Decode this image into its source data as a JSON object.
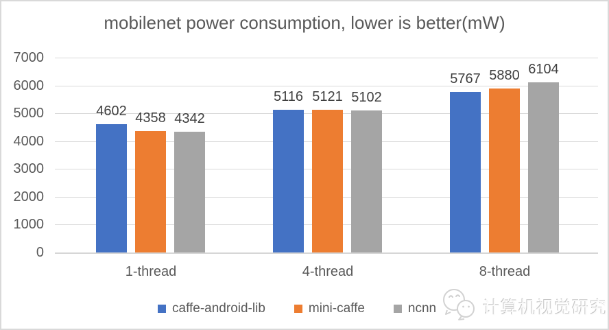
{
  "chart_data": {
    "type": "bar",
    "title": "mobilenet power consumption, lower is better(mW)",
    "categories": [
      "1-thread",
      "4-thread",
      "8-thread"
    ],
    "series": [
      {
        "name": "caffe-android-lib",
        "color": "#4472C4",
        "values": [
          4602,
          5116,
          5767
        ]
      },
      {
        "name": "mini-caffe",
        "color": "#ED7D31",
        "values": [
          4358,
          5121,
          5880
        ]
      },
      {
        "name": "ncnn",
        "color": "#A5A5A5",
        "values": [
          4342,
          5102,
          6104
        ]
      }
    ],
    "ylim": [
      0,
      7000
    ],
    "ytick_step": 1000,
    "grid": true,
    "legend_position": "bottom",
    "data_labels": true,
    "colors": {
      "title_text": "#595959",
      "axis_text": "#595959",
      "value_label_text": "#3f3f3f",
      "gridline": "#d9d9d9"
    }
  },
  "watermark": {
    "text": "计算机视觉研究院",
    "logo": "chat-bubbles-logo-icon"
  }
}
